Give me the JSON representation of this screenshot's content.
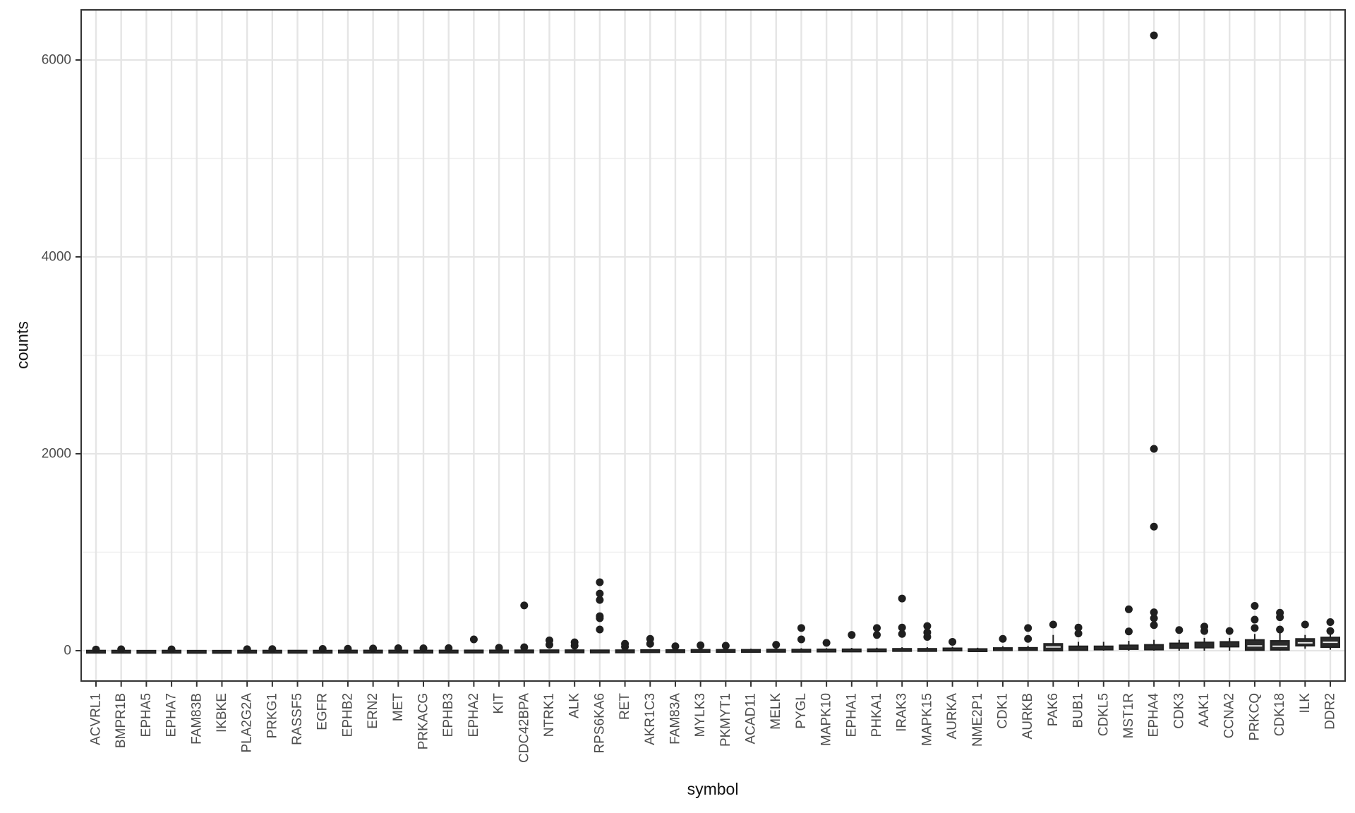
{
  "figure": {
    "y_axis_title": "counts",
    "x_axis_title": "symbol",
    "colors": {
      "background": "#FFFFFF",
      "panel_border": "#333333",
      "grid_major": "#E5E5E5",
      "grid_minor": "#F0F0F0",
      "ink": "#1F1F1F",
      "box_fill": "#2B2B2B",
      "median_line": "#E8E8E8",
      "tick_mark": "#333333",
      "tick_label": "#4D4D4D",
      "title_color": "#111111"
    }
  },
  "chart_data": {
    "type": "boxplot",
    "title": "",
    "xlabel": "symbol",
    "ylabel": "counts",
    "ylim": [
      -310,
      6510
    ],
    "y_major_ticks": [
      0,
      2000,
      4000,
      6000
    ],
    "y_minor_gridlines": [
      1000,
      3000,
      5000
    ],
    "grid": true,
    "legend": "none",
    "categories": [
      "ACVRL1",
      "BMPR1B",
      "EPHA5",
      "EPHA7",
      "FAM83B",
      "IKBKE",
      "PLA2G2A",
      "PRKG1",
      "RASSF5",
      "EGFR",
      "EPHB2",
      "ERN2",
      "MET",
      "PRKACG",
      "EPHB3",
      "EPHA2",
      "KIT",
      "CDC42BPA",
      "NTRK1",
      "ALK",
      "RPS6KA6",
      "RET",
      "AKR1C3",
      "FAM83A",
      "MYLK3",
      "PKMYT1",
      "ACAD11",
      "MELK",
      "PYGL",
      "MAPK10",
      "EPHA1",
      "PHKA1",
      "IRAK3",
      "MAPK15",
      "AURKA",
      "NME2P1",
      "CDK1",
      "AURKB",
      "PAK6",
      "BUB1",
      "CDKL5",
      "MST1R",
      "EPHA4",
      "CDK3",
      "AAK1",
      "CCNA2",
      "PRKCQ",
      "CDK18",
      "ILK",
      "DDR2"
    ],
    "boxes": [
      {
        "gene": "ACVRL1",
        "low": 0,
        "q1": 0,
        "median": 1,
        "q3": 2,
        "high": 4,
        "outliers": [
          12
        ]
      },
      {
        "gene": "BMPR1B",
        "low": 0,
        "q1": 0,
        "median": 1,
        "q3": 2,
        "high": 5,
        "outliers": [
          14
        ]
      },
      {
        "gene": "EPHA5",
        "low": 0,
        "q1": 0,
        "median": 0,
        "q3": 1,
        "high": 3,
        "outliers": []
      },
      {
        "gene": "EPHA7",
        "low": 0,
        "q1": 0,
        "median": 1,
        "q3": 2,
        "high": 4,
        "outliers": [
          13
        ]
      },
      {
        "gene": "FAM83B",
        "low": 0,
        "q1": 0,
        "median": 0,
        "q3": 1,
        "high": 3,
        "outliers": []
      },
      {
        "gene": "IKBKE",
        "low": 0,
        "q1": 0,
        "median": 0,
        "q3": 1,
        "high": 4,
        "outliers": []
      },
      {
        "gene": "PLA2G2A",
        "low": 0,
        "q1": 0,
        "median": 1,
        "q3": 2,
        "high": 4,
        "outliers": [
          15
        ]
      },
      {
        "gene": "PRKG1",
        "low": 0,
        "q1": 0,
        "median": 1,
        "q3": 2,
        "high": 5,
        "outliers": [
          16
        ]
      },
      {
        "gene": "RASSF5",
        "low": 0,
        "q1": 0,
        "median": 1,
        "q3": 2,
        "high": 5,
        "outliers": []
      },
      {
        "gene": "EGFR",
        "low": 0,
        "q1": 0,
        "median": 1,
        "q3": 2,
        "high": 5,
        "outliers": [
          18
        ]
      },
      {
        "gene": "EPHB2",
        "low": 0,
        "q1": 0,
        "median": 1,
        "q3": 3,
        "high": 6,
        "outliers": [
          20
        ]
      },
      {
        "gene": "ERN2",
        "low": 0,
        "q1": 0,
        "median": 1,
        "q3": 3,
        "high": 6,
        "outliers": [
          22
        ]
      },
      {
        "gene": "MET",
        "low": 0,
        "q1": 0,
        "median": 1,
        "q3": 3,
        "high": 7,
        "outliers": [
          25
        ]
      },
      {
        "gene": "PRKACG",
        "low": 0,
        "q1": 0,
        "median": 1,
        "q3": 3,
        "high": 6,
        "outliers": [
          24
        ]
      },
      {
        "gene": "EPHB3",
        "low": 0,
        "q1": 0,
        "median": 2,
        "q3": 3,
        "high": 7,
        "outliers": [
          26
        ]
      },
      {
        "gene": "EPHA2",
        "low": 0,
        "q1": 0,
        "median": 2,
        "q3": 4,
        "high": 8,
        "outliers": [
          115
        ]
      },
      {
        "gene": "KIT",
        "low": 0,
        "q1": 0,
        "median": 2,
        "q3": 4,
        "high": 8,
        "outliers": [
          30
        ]
      },
      {
        "gene": "CDC42BPA",
        "low": 0,
        "q1": 0,
        "median": 2,
        "q3": 5,
        "high": 10,
        "outliers": [
          35,
          460
        ]
      },
      {
        "gene": "NTRK1",
        "low": 0,
        "q1": 0,
        "median": 3,
        "q3": 6,
        "high": 12,
        "outliers": [
          60,
          105
        ]
      },
      {
        "gene": "ALK",
        "low": 0,
        "q1": 0,
        "median": 3,
        "q3": 6,
        "high": 12,
        "outliers": [
          50,
          85
        ]
      },
      {
        "gene": "RPS6KA6",
        "low": 0,
        "q1": 0,
        "median": 2,
        "q3": 5,
        "high": 10,
        "outliers": [
          215,
          330,
          350,
          515,
          580,
          695
        ]
      },
      {
        "gene": "RET",
        "low": 0,
        "q1": 0,
        "median": 3,
        "q3": 6,
        "high": 12,
        "outliers": [
          40,
          70
        ]
      },
      {
        "gene": "AKR1C3",
        "low": 0,
        "q1": 0,
        "median": 4,
        "q3": 8,
        "high": 15,
        "outliers": [
          70,
          120
        ]
      },
      {
        "gene": "FAM83A",
        "low": 0,
        "q1": 0,
        "median": 4,
        "q3": 8,
        "high": 15,
        "outliers": [
          45
        ]
      },
      {
        "gene": "MYLK3",
        "low": 0,
        "q1": 2,
        "median": 5,
        "q3": 10,
        "high": 18,
        "outliers": [
          55
        ]
      },
      {
        "gene": "PKMYT1",
        "low": 0,
        "q1": 2,
        "median": 5,
        "q3": 10,
        "high": 18,
        "outliers": [
          50
        ]
      },
      {
        "gene": "ACAD11",
        "low": 0,
        "q1": 2,
        "median": 6,
        "q3": 10,
        "high": 20,
        "outliers": []
      },
      {
        "gene": "MELK",
        "low": 0,
        "q1": 2,
        "median": 6,
        "q3": 12,
        "high": 22,
        "outliers": [
          60
        ]
      },
      {
        "gene": "PYGL",
        "low": 0,
        "q1": 2,
        "median": 7,
        "q3": 12,
        "high": 25,
        "outliers": [
          115,
          230
        ]
      },
      {
        "gene": "MAPK10",
        "low": 0,
        "q1": 3,
        "median": 8,
        "q3": 14,
        "high": 25,
        "outliers": [
          80
        ]
      },
      {
        "gene": "EPHA1",
        "low": 0,
        "q1": 3,
        "median": 8,
        "q3": 15,
        "high": 28,
        "outliers": [
          160
        ]
      },
      {
        "gene": "PHKA1",
        "low": 0,
        "q1": 4,
        "median": 9,
        "q3": 16,
        "high": 30,
        "outliers": [
          160,
          230
        ]
      },
      {
        "gene": "IRAK3",
        "low": 0,
        "q1": 5,
        "median": 12,
        "q3": 20,
        "high": 35,
        "outliers": [
          170,
          235,
          530
        ]
      },
      {
        "gene": "MAPK15",
        "low": 0,
        "q1": 5,
        "median": 12,
        "q3": 20,
        "high": 35,
        "outliers": [
          140,
          185,
          250
        ]
      },
      {
        "gene": "AURKA",
        "low": 0,
        "q1": 8,
        "median": 15,
        "q3": 25,
        "high": 40,
        "outliers": [
          90
        ]
      },
      {
        "gene": "NME2P1",
        "low": 0,
        "q1": 5,
        "median": 10,
        "q3": 18,
        "high": 30,
        "outliers": []
      },
      {
        "gene": "CDK1",
        "low": 0,
        "q1": 10,
        "median": 18,
        "q3": 28,
        "high": 45,
        "outliers": [
          120
        ]
      },
      {
        "gene": "AURKB",
        "low": 0,
        "q1": 10,
        "median": 18,
        "q3": 30,
        "high": 48,
        "outliers": [
          120,
          230
        ]
      },
      {
        "gene": "PAK6",
        "low": 0,
        "q1": 0,
        "median": 38,
        "q3": 70,
        "high": 160,
        "outliers": [
          265
        ]
      },
      {
        "gene": "BUB1",
        "low": 0,
        "q1": 5,
        "median": 25,
        "q3": 45,
        "high": 90,
        "outliers": [
          175,
          235
        ]
      },
      {
        "gene": "CDKL5",
        "low": 0,
        "q1": 10,
        "median": 25,
        "q3": 45,
        "high": 90,
        "outliers": []
      },
      {
        "gene": "MST1R",
        "low": 0,
        "q1": 15,
        "median": 30,
        "q3": 55,
        "high": 100,
        "outliers": [
          195,
          420
        ]
      },
      {
        "gene": "EPHA4",
        "low": 0,
        "q1": 10,
        "median": 30,
        "q3": 60,
        "high": 110,
        "outliers": [
          260,
          330,
          390,
          1260,
          2050,
          6250
        ]
      },
      {
        "gene": "CDK3",
        "low": 0,
        "q1": 25,
        "median": 45,
        "q3": 75,
        "high": 110,
        "outliers": [
          210
        ]
      },
      {
        "gene": "AAK1",
        "low": 0,
        "q1": 30,
        "median": 55,
        "q3": 85,
        "high": 130,
        "outliers": [
          200,
          245
        ]
      },
      {
        "gene": "CCNA2",
        "low": 0,
        "q1": 40,
        "median": 62,
        "q3": 90,
        "high": 130,
        "outliers": [
          200
        ]
      },
      {
        "gene": "PRKCQ",
        "low": 0,
        "q1": 5,
        "median": 48,
        "q3": 110,
        "high": 170,
        "outliers": [
          230,
          315,
          455
        ]
      },
      {
        "gene": "CDK18",
        "low": 0,
        "q1": 8,
        "median": 45,
        "q3": 100,
        "high": 180,
        "outliers": [
          215,
          340,
          385
        ]
      },
      {
        "gene": "ILK",
        "low": 20,
        "q1": 50,
        "median": 80,
        "q3": 120,
        "high": 160,
        "outliers": [
          265
        ]
      },
      {
        "gene": "DDR2",
        "low": 10,
        "q1": 35,
        "median": 85,
        "q3": 135,
        "high": 185,
        "outliers": [
          200,
          290
        ]
      }
    ]
  }
}
